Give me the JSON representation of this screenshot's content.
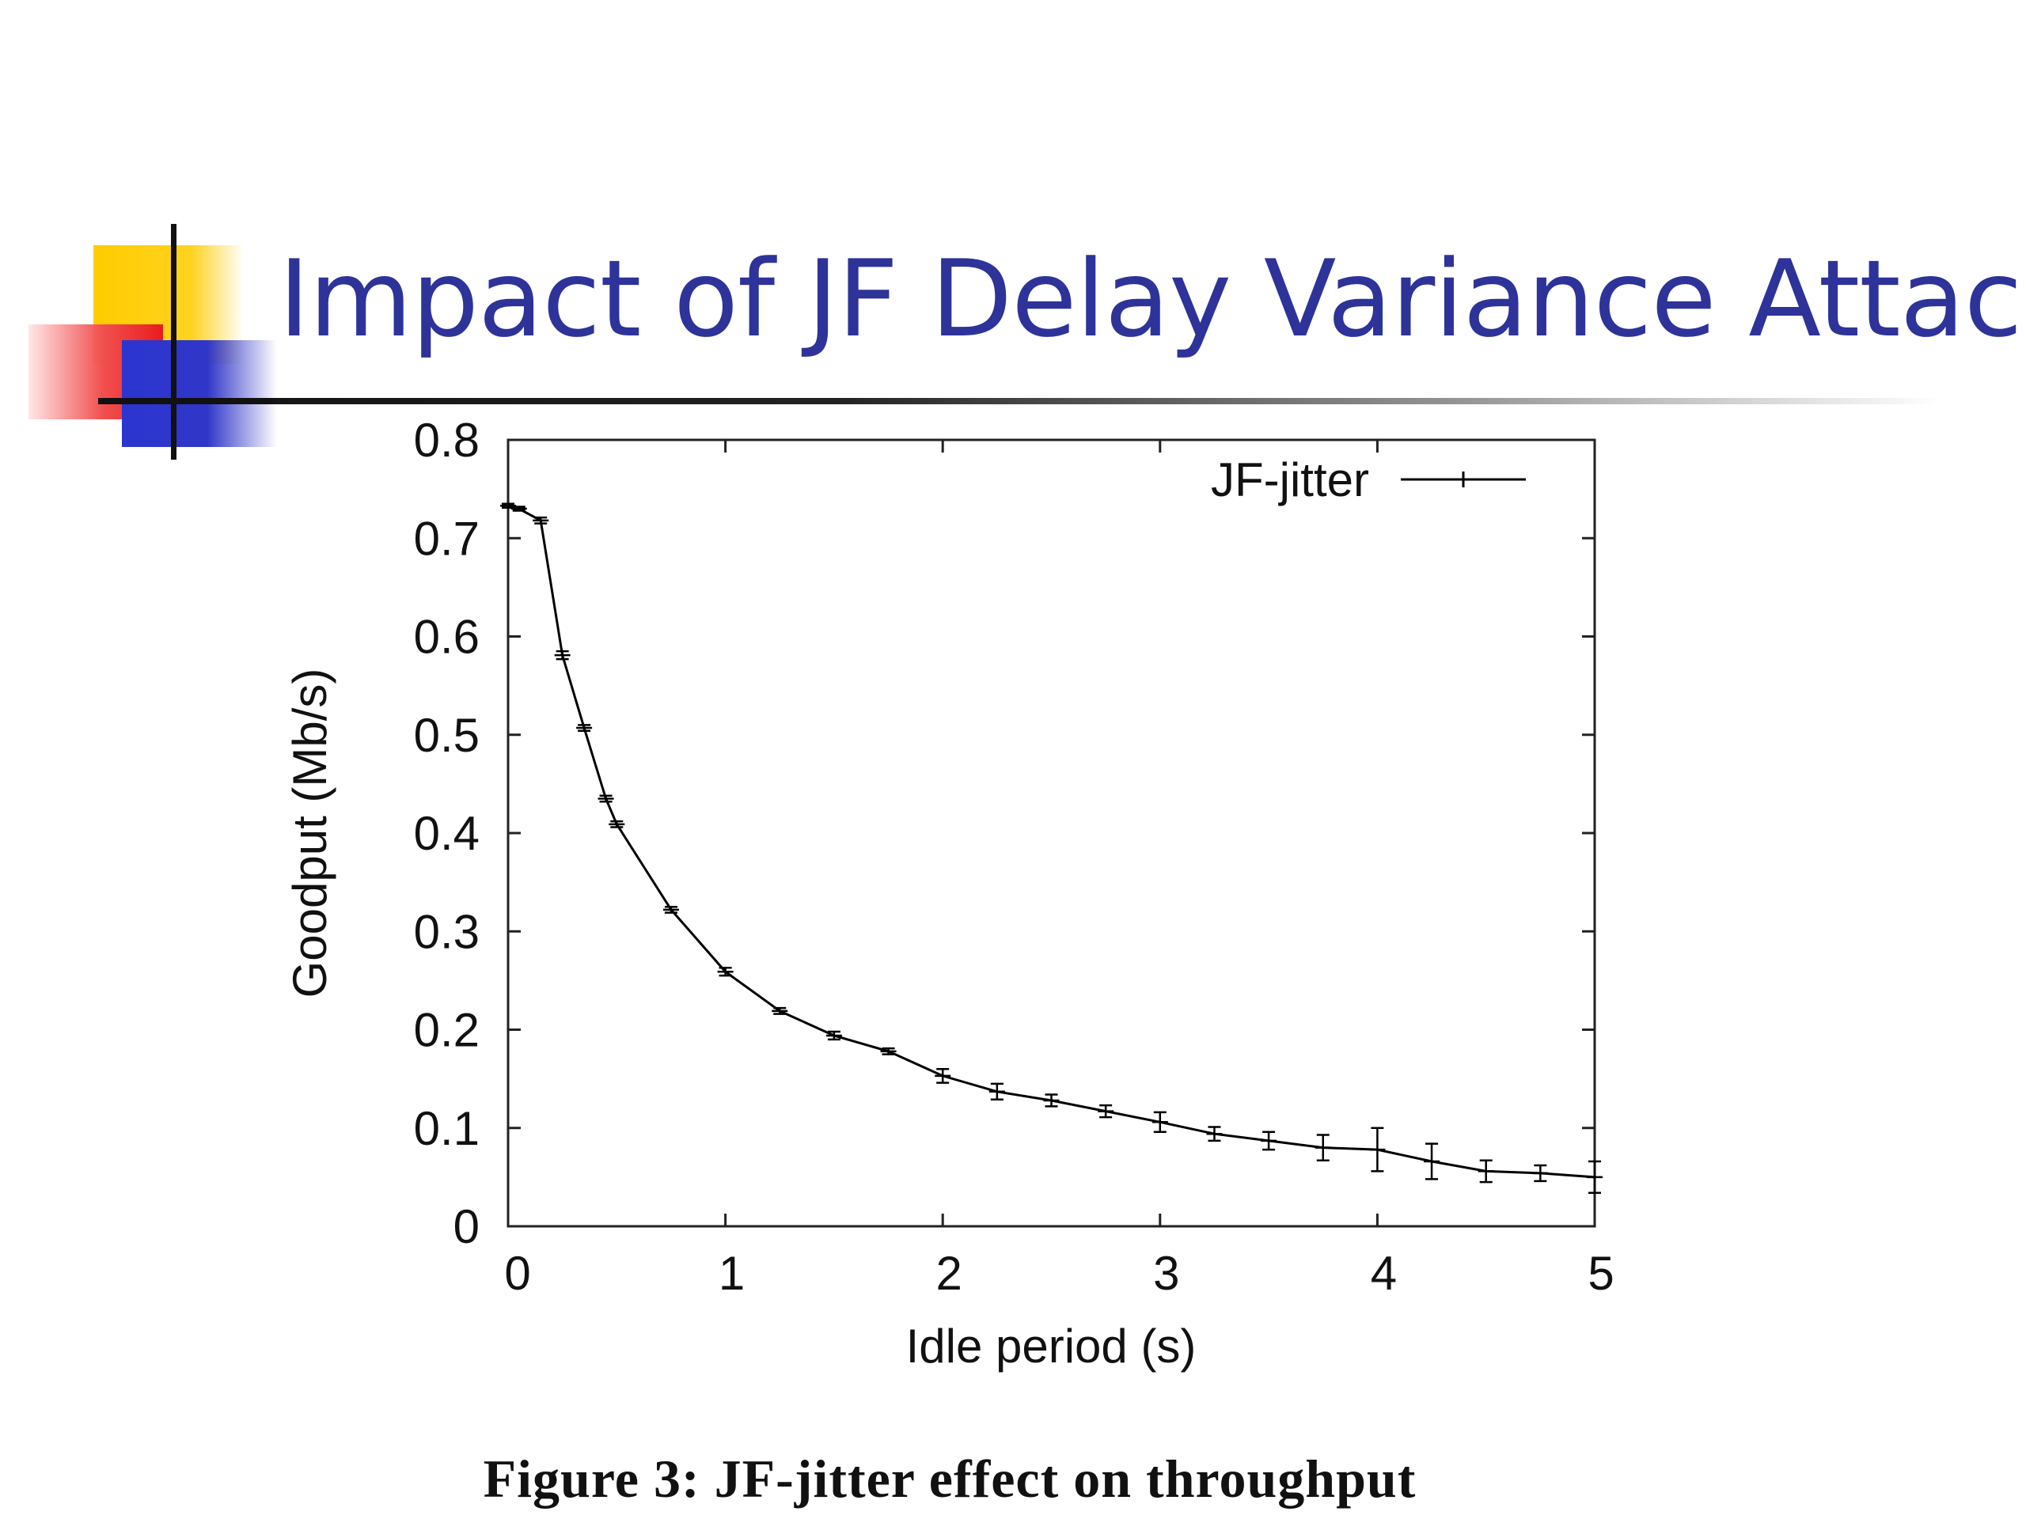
{
  "slide": {
    "title": "Impact of JF Delay Variance Attack",
    "caption": "Figure 3: JF-jitter effect on throughput",
    "title_color": "#2E3399"
  },
  "chart_data": {
    "type": "line",
    "title": "",
    "xlabel": "Idle period (s)",
    "ylabel": "Goodput (Mb/s)",
    "xlim": [
      0,
      5
    ],
    "ylim": [
      0,
      0.8
    ],
    "x_ticks": [
      "0",
      "1",
      "2",
      "3",
      "4",
      "5"
    ],
    "y_ticks": [
      "0",
      "0.1",
      "0.2",
      "0.3",
      "0.4",
      "0.5",
      "0.6",
      "0.7",
      "0.8"
    ],
    "grid": false,
    "legend": {
      "position": "top-right",
      "marker": "plus"
    },
    "series": [
      {
        "name": "JF-jitter",
        "color": "#000000",
        "x": [
          0,
          0.05,
          0.15,
          0.25,
          0.35,
          0.45,
          0.5,
          0.75,
          1.0,
          1.25,
          1.5,
          1.75,
          2.0,
          2.25,
          2.5,
          2.75,
          3.0,
          3.25,
          3.5,
          3.75,
          4.0,
          4.25,
          4.5,
          4.75,
          5.0
        ],
        "y": [
          0.733,
          0.73,
          0.718,
          0.581,
          0.507,
          0.435,
          0.409,
          0.322,
          0.259,
          0.219,
          0.194,
          0.178,
          0.153,
          0.137,
          0.128,
          0.117,
          0.106,
          0.094,
          0.087,
          0.08,
          0.078,
          0.066,
          0.056,
          0.054,
          0.05
        ],
        "error": [
          0.002,
          0.002,
          0.003,
          0.004,
          0.003,
          0.003,
          0.003,
          0.003,
          0.004,
          0.003,
          0.004,
          0.003,
          0.007,
          0.008,
          0.006,
          0.006,
          0.01,
          0.007,
          0.009,
          0.013,
          0.022,
          0.018,
          0.011,
          0.008,
          0.016
        ]
      }
    ]
  }
}
